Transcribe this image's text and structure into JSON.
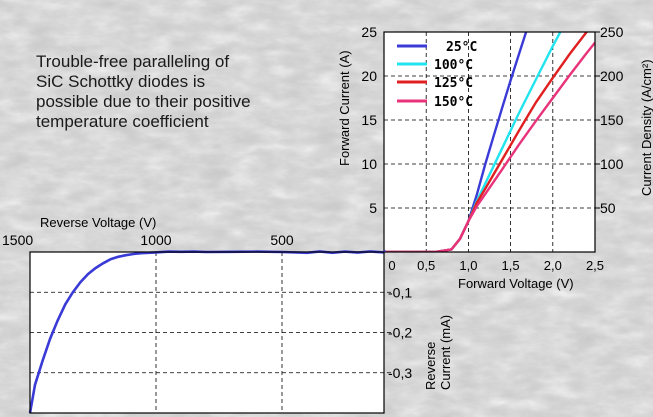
{
  "caption": {
    "lines": [
      "Trouble-free paralleling of",
      "SiC Schottky diodes is",
      "possible due to their positive",
      "temperature coefficient"
    ]
  },
  "chart_data": [
    {
      "type": "line",
      "title": "",
      "xlabel": "Forward Voltage (V)",
      "ylabel": "Forward Current (A)",
      "y2label": "Current Density (A/cm²)",
      "xlim": [
        0,
        2.5
      ],
      "ylim": [
        0,
        25
      ],
      "y2lim": [
        0,
        250
      ],
      "xticks": [
        "0",
        "0,5",
        "1,0",
        "1,5",
        "2,0",
        "2,5"
      ],
      "yticks": [
        "5",
        "10",
        "15",
        "20",
        "25"
      ],
      "y2ticks": [
        "50",
        "100",
        "150",
        "200",
        "250"
      ],
      "grid": true,
      "legend": "top-left",
      "series": [
        {
          "name": "25°C",
          "color": "#3a3ad6",
          "x": [
            0,
            0.6,
            0.8,
            0.9,
            1.0,
            1.1,
            1.2,
            1.3,
            1.4,
            1.5,
            1.6,
            1.7,
            1.8
          ],
          "y": [
            0,
            0,
            0.3,
            1.5,
            3.5,
            6.5,
            10,
            13.2,
            16.4,
            19.5,
            22.5,
            25.5,
            28
          ]
        },
        {
          "name": "100°C",
          "color": "#22e4ee",
          "x": [
            0,
            0.6,
            0.8,
            0.9,
            1.0,
            1.1,
            1.2,
            1.4,
            1.6,
            1.8,
            2.0,
            2.2
          ],
          "y": [
            0,
            0,
            0.3,
            1.5,
            3.5,
            5.8,
            7.8,
            11.8,
            15.8,
            19.6,
            23.4,
            27
          ]
        },
        {
          "name": "125°C",
          "color": "#e02020",
          "x": [
            0,
            0.6,
            0.8,
            0.9,
            1.0,
            1.1,
            1.2,
            1.4,
            1.6,
            1.8,
            2.0,
            2.2,
            2.4,
            2.5
          ],
          "y": [
            0,
            0,
            0.3,
            1.5,
            3.5,
            5.6,
            7.2,
            10.5,
            13.8,
            17,
            19.8,
            22.5,
            25,
            26.2
          ]
        },
        {
          "name": "150°C",
          "color": "#e8337a",
          "x": [
            0,
            0.6,
            0.8,
            0.9,
            1.0,
            1.1,
            1.2,
            1.4,
            1.6,
            1.8,
            2.0,
            2.2,
            2.4,
            2.5
          ],
          "y": [
            0,
            0,
            0.3,
            1.5,
            3.5,
            5.2,
            6.6,
            9.4,
            12.2,
            14.9,
            17.5,
            20.1,
            22.6,
            23.8
          ]
        }
      ]
    },
    {
      "type": "line",
      "title": "",
      "xlabel": "Reverse Voltage (V)",
      "ylabel": "Reverse Current (mA)",
      "xlim": [
        1500,
        0
      ],
      "ylim": [
        -0.4,
        0
      ],
      "xticks": [
        "1500",
        "1000",
        "500"
      ],
      "yticks": [
        "-0,1",
        "-0,2",
        "-0,3"
      ],
      "grid": true,
      "series": [
        {
          "color": "#3a3ad6",
          "x": [
            1500,
            1480,
            1450,
            1420,
            1390,
            1360,
            1330,
            1300,
            1270,
            1240,
            1210,
            1180,
            1150,
            1120,
            1090,
            1060,
            1030,
            1000,
            950,
            900,
            850,
            800,
            700,
            600,
            500,
            400,
            350,
            300,
            250,
            200,
            150,
            100,
            50,
            0
          ],
          "y": [
            -0.4,
            -0.33,
            -0.27,
            -0.215,
            -0.17,
            -0.13,
            -0.1,
            -0.075,
            -0.055,
            -0.04,
            -0.028,
            -0.018,
            -0.012,
            -0.008,
            -0.005,
            -0.003,
            -0.002,
            -0.001,
            0.001,
            0.0005,
            0.001,
            0,
            0.0005,
            0.001,
            0,
            -0.002,
            0.0015,
            -0.002,
            0.001,
            -0.0015,
            0.0015,
            -0.001,
            0.0005,
            0
          ]
        }
      ]
    }
  ]
}
